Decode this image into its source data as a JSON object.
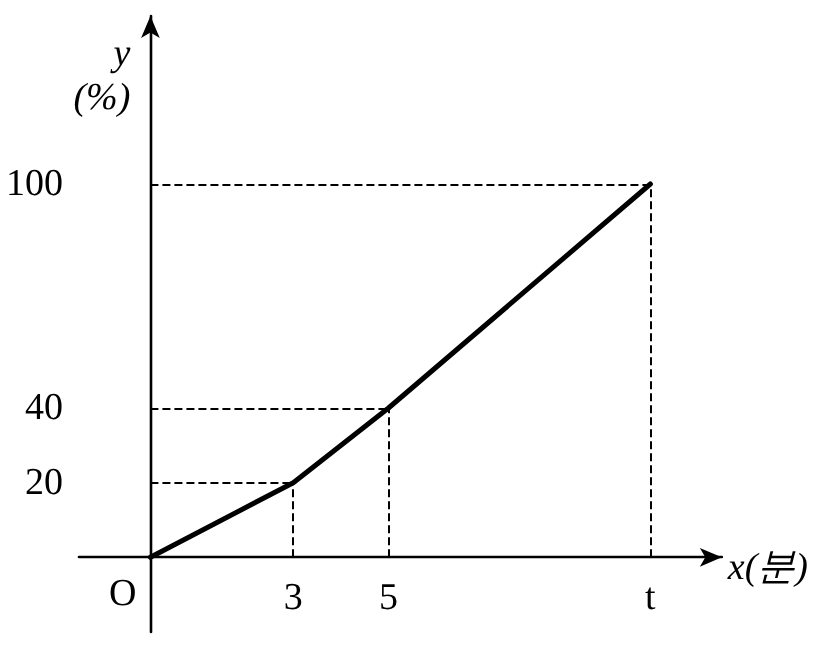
{
  "chart_data": {
    "type": "line",
    "xlabel": "x(분)",
    "ylabel": "y\n(%)",
    "x": [
      0,
      3,
      5,
      10.5
    ],
    "series": [
      {
        "color": "#000000",
        "values": [
          0,
          20,
          40,
          100
        ]
      }
    ],
    "xlim": [
      -1.5,
      12
    ],
    "ylim": [
      -20,
      145
    ],
    "xticks": [
      3,
      5,
      {
        "value": 10.5,
        "label": "t"
      }
    ],
    "yticks": [
      20,
      40,
      100
    ],
    "grid": false,
    "marker": "none",
    "line_style": "solid",
    "ref_lines": [
      {
        "axis": "x",
        "value": 3,
        "color": "#000000",
        "line_style": "dashed"
      },
      {
        "axis": "x",
        "value": 5,
        "color": "#000000",
        "line_style": "dashed"
      },
      {
        "axis": "x",
        "value": 10.5,
        "color": "#000000",
        "line_style": "dashed"
      },
      {
        "axis": "y",
        "value": 20,
        "color": "#000000",
        "line_style": "dashed"
      },
      {
        "axis": "y",
        "value": 40,
        "color": "#000000",
        "line_style": "dashed"
      },
      {
        "axis": "y",
        "value": 100,
        "color": "#000000",
        "line_style": "dashed"
      }
    ],
    "annotations": [
      {
        "text": "O",
        "x": 0,
        "y": 0
      }
    ]
  }
}
